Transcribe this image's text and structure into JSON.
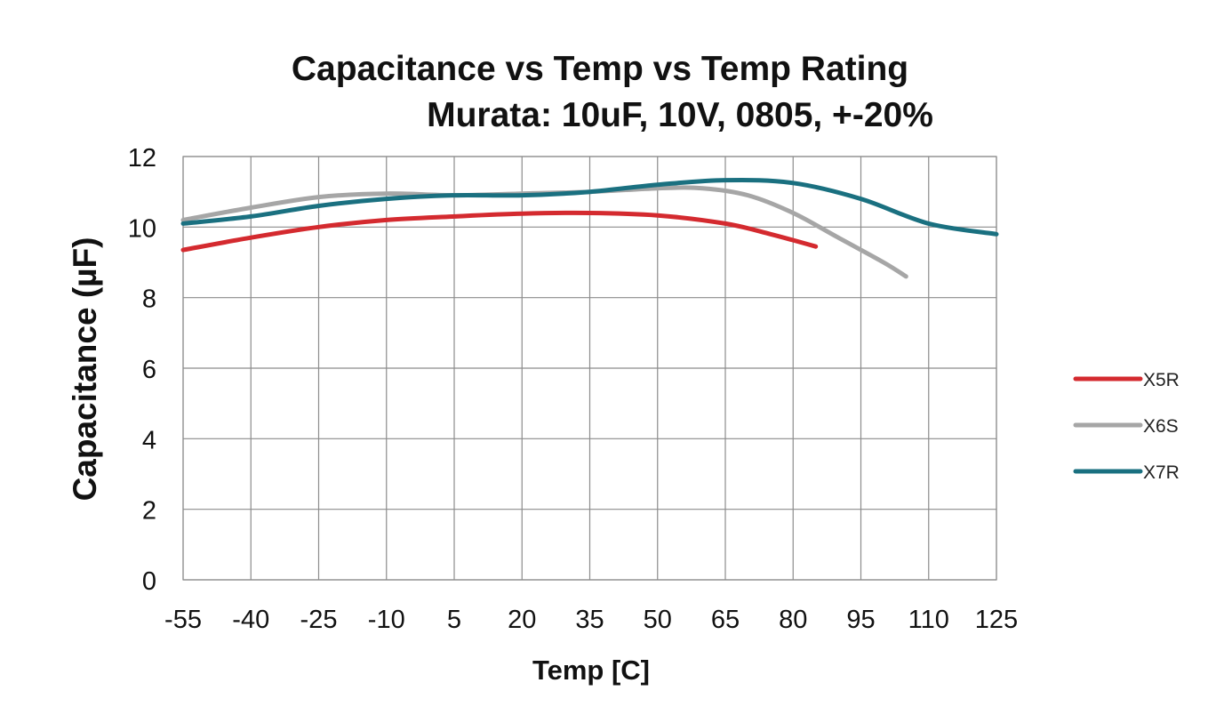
{
  "chart_data": {
    "type": "line",
    "title": "Capacitance vs Temp vs Temp Rating",
    "subtitle": "Murata: 10uF, 10V, 0805, +-20%",
    "xlabel": "Temp [C]",
    "ylabel": "Capacitance (µF)",
    "xlim": [
      -55,
      125
    ],
    "ylim": [
      0,
      12
    ],
    "xticks": [
      -55,
      -40,
      -25,
      -10,
      5,
      20,
      35,
      50,
      65,
      80,
      95,
      110,
      125
    ],
    "yticks": [
      0,
      2,
      4,
      6,
      8,
      10,
      12
    ],
    "grid": true,
    "legend_position": "right",
    "series": [
      {
        "name": "X5R",
        "color": "#d42a2f",
        "x": [
          -55,
          -40,
          -25,
          -10,
          5,
          20,
          35,
          50,
          65,
          75,
          85
        ],
        "y": [
          9.35,
          9.7,
          10.0,
          10.2,
          10.3,
          10.38,
          10.4,
          10.33,
          10.1,
          9.8,
          9.45
        ]
      },
      {
        "name": "X6S",
        "color": "#a6a6a6",
        "x": [
          -55,
          -40,
          -25,
          -10,
          5,
          20,
          35,
          50,
          60,
          70,
          80,
          90,
          100,
          105
        ],
        "y": [
          10.2,
          10.55,
          10.85,
          10.95,
          10.9,
          10.95,
          11.0,
          11.1,
          11.1,
          10.9,
          10.4,
          9.7,
          9.0,
          8.6
        ]
      },
      {
        "name": "X7R",
        "color": "#1a7080",
        "x": [
          -55,
          -40,
          -25,
          -10,
          5,
          20,
          35,
          50,
          65,
          80,
          95,
          110,
          125
        ],
        "y": [
          10.1,
          10.3,
          10.6,
          10.8,
          10.9,
          10.9,
          11.0,
          11.2,
          11.33,
          11.25,
          10.8,
          10.1,
          9.8
        ]
      }
    ]
  }
}
